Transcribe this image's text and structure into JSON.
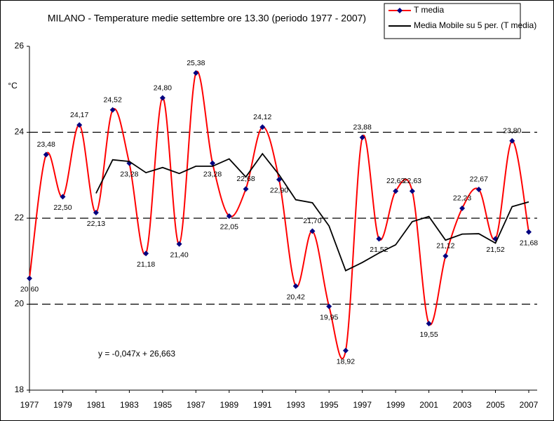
{
  "chart_data": {
    "type": "line",
    "title": "MILANO  - Temperature medie settembre ore 13.30 (periodo 1977 - 2007)",
    "y_label": "°C",
    "annotation": "y = -0,047x + 26,663",
    "x": [
      1977,
      1978,
      1979,
      1980,
      1981,
      1982,
      1983,
      1984,
      1985,
      1986,
      1987,
      1988,
      1989,
      1990,
      1991,
      1992,
      1993,
      1994,
      1995,
      1996,
      1997,
      1998,
      1999,
      2000,
      2001,
      2002,
      2003,
      2004,
      2005,
      2006,
      2007
    ],
    "xlim": [
      1977,
      2007
    ],
    "xticks": [
      1977,
      1979,
      1981,
      1983,
      1985,
      1987,
      1989,
      1991,
      1993,
      1995,
      1997,
      1999,
      2001,
      2003,
      2005,
      2007
    ],
    "ylim": [
      18,
      26
    ],
    "yticks": [
      18,
      20,
      22,
      24,
      26
    ],
    "grid": true,
    "legend": "top-right",
    "series": [
      {
        "name": "T media",
        "color": "#ff0000",
        "marker_color": "#000080",
        "values": [
          20.6,
          23.48,
          22.5,
          24.17,
          22.13,
          24.52,
          23.28,
          21.18,
          24.8,
          21.4,
          25.38,
          23.28,
          22.05,
          22.68,
          24.12,
          22.9,
          20.42,
          21.7,
          19.95,
          18.92,
          23.88,
          21.52,
          22.63,
          22.63,
          19.55,
          21.12,
          22.23,
          22.67,
          21.52,
          23.8,
          21.68
        ],
        "value_labels": [
          "20,60",
          "23,48",
          "22,50",
          "24,17",
          "22,13",
          "24,52",
          "23,28",
          "21,18",
          "24,80",
          "21,40",
          "25,38",
          "23,28",
          "22,05",
          "22,68",
          "24,12",
          "22,90",
          "20,42",
          "21,70",
          "19,95",
          "18,92",
          "23,88",
          "21,52",
          "22,63",
          "22,63",
          "19,55",
          "21,12",
          "22,23",
          "22,67",
          "21,52",
          "23,80",
          "21,68"
        ]
      },
      {
        "name": "Media Mobile su 5 per. (T media)",
        "color": "#000000",
        "values": [
          null,
          null,
          null,
          null,
          22.58,
          23.36,
          23.32,
          23.06,
          23.18,
          23.04,
          23.21,
          23.21,
          23.38,
          22.96,
          23.5,
          23.01,
          22.43,
          22.36,
          21.82,
          20.78,
          20.97,
          21.19,
          21.38,
          21.92,
          22.04,
          21.49,
          21.63,
          21.64,
          21.42,
          22.27,
          22.38
        ]
      }
    ]
  }
}
